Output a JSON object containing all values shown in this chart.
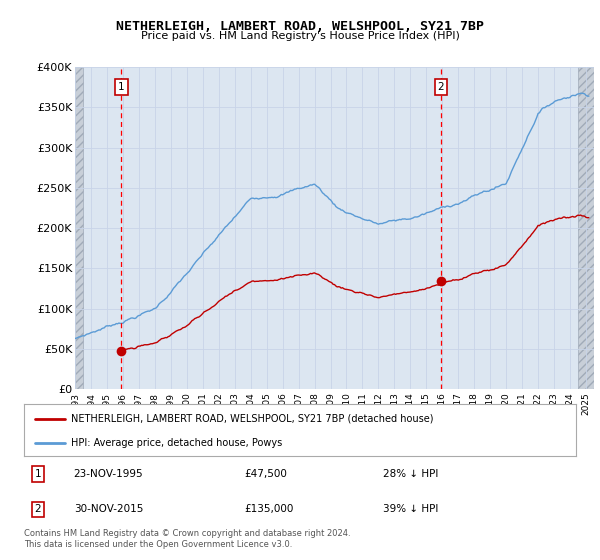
{
  "title": "NETHERLEIGH, LAMBERT ROAD, WELSHPOOL, SY21 7BP",
  "subtitle": "Price paid vs. HM Land Registry's House Price Index (HPI)",
  "legend_line1": "NETHERLEIGH, LAMBERT ROAD, WELSHPOOL, SY21 7BP (detached house)",
  "legend_line2": "HPI: Average price, detached house, Powys",
  "footnote": "Contains HM Land Registry data © Crown copyright and database right 2024.\nThis data is licensed under the Open Government Licence v3.0.",
  "sale1_date": "23-NOV-1995",
  "sale1_price": "£47,500",
  "sale1_hpi": "28% ↓ HPI",
  "sale2_date": "30-NOV-2015",
  "sale2_price": "£135,000",
  "sale2_hpi": "39% ↓ HPI",
  "sale1_x": 1995.9,
  "sale1_y": 47500,
  "sale2_x": 2015.92,
  "sale2_y": 135000,
  "ylim": [
    0,
    400000
  ],
  "yticks": [
    0,
    50000,
    100000,
    150000,
    200000,
    250000,
    300000,
    350000,
    400000
  ],
  "xlim": [
    1993,
    2025.5
  ],
  "xticks": [
    1993,
    1994,
    1995,
    1996,
    1997,
    1998,
    1999,
    2000,
    2001,
    2002,
    2003,
    2004,
    2005,
    2006,
    2007,
    2008,
    2009,
    2010,
    2011,
    2012,
    2013,
    2014,
    2015,
    2016,
    2017,
    2018,
    2019,
    2020,
    2021,
    2022,
    2023,
    2024,
    2025
  ],
  "hpi_color": "#5b9bd5",
  "price_color": "#c00000",
  "marker_color": "#c00000",
  "vline_color": "#ff0000",
  "grid_color": "#c8d4e8",
  "plot_bg": "#dce6f1",
  "hatch_bg": "#c8cfd8"
}
